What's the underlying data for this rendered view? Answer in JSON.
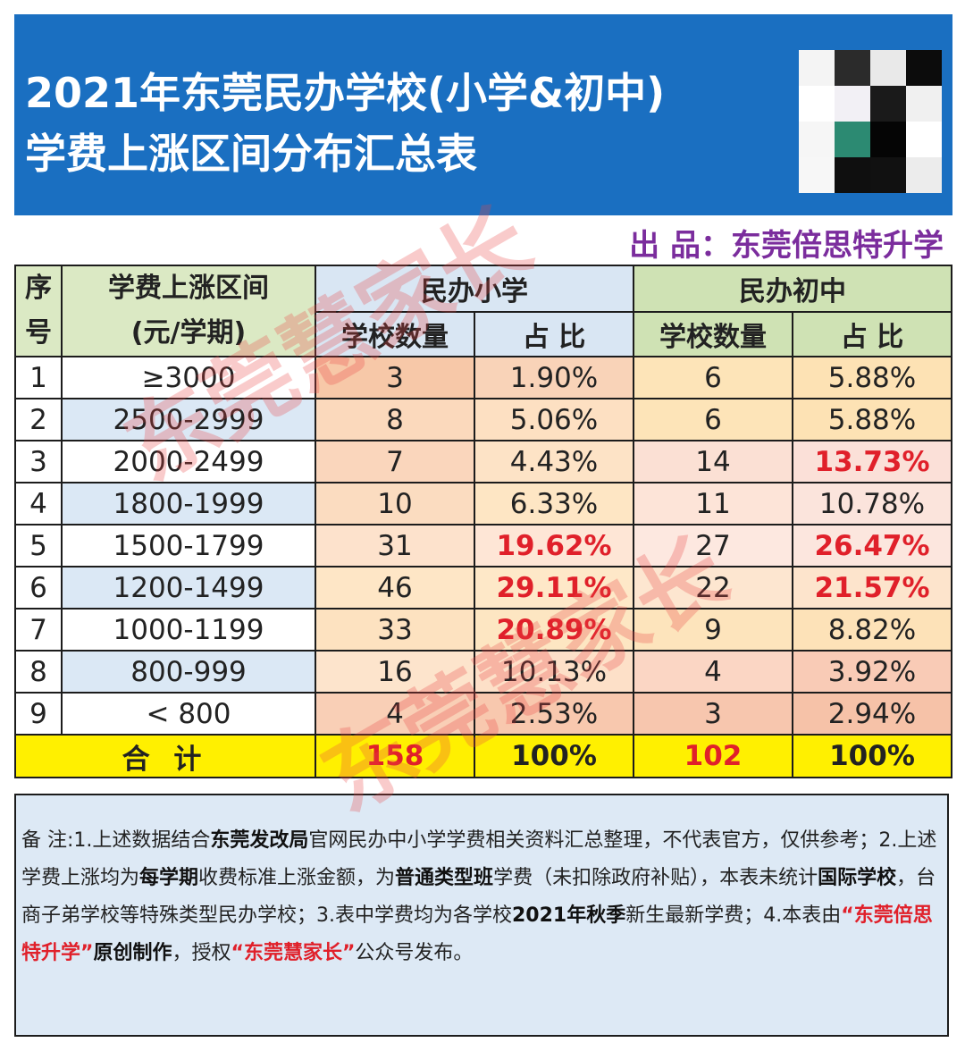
{
  "header": {
    "title_line1": "2021年东莞民办学校(小学&初中)",
    "title_line2": "学费上涨区间分布汇总表",
    "qr_code": "qr-code-image"
  },
  "producer": "出 品：东莞倍思特升学",
  "watermark": "东莞慧家长",
  "colors": {
    "header_bg": "#1a6fc1",
    "primary_header_bg": "#d9e6f3",
    "middle_header_bg": "#cfe2b4",
    "total_row_bg": "#fff000",
    "highlight_red": "#e0202a",
    "producer_purple": "#7b2d9d"
  },
  "table": {
    "col_index": "序号",
    "col_range": "学费上涨区间(元/学期)",
    "col_index_l1": "序",
    "col_index_l2": "号",
    "col_range_l1": "学费上涨区间",
    "col_range_l2": "(元/学期)",
    "group_primary": "民办小学",
    "group_middle": "民办初中",
    "sub_count": "学校数量",
    "sub_ratio": "占 比",
    "rows": [
      {
        "no": "1",
        "range": "≥3000",
        "p_count": "3",
        "p_ratio": "1.90%",
        "m_count": "6",
        "m_ratio": "5.88%"
      },
      {
        "no": "2",
        "range": "2500-2999",
        "p_count": "8",
        "p_ratio": "5.06%",
        "m_count": "6",
        "m_ratio": "5.88%"
      },
      {
        "no": "3",
        "range": "2000-2499",
        "p_count": "7",
        "p_ratio": "4.43%",
        "m_count": "14",
        "m_ratio": "13.73%"
      },
      {
        "no": "4",
        "range": "1800-1999",
        "p_count": "10",
        "p_ratio": "6.33%",
        "m_count": "11",
        "m_ratio": "10.78%"
      },
      {
        "no": "5",
        "range": "1500-1799",
        "p_count": "31",
        "p_ratio": "19.62%",
        "m_count": "27",
        "m_ratio": "26.47%"
      },
      {
        "no": "6",
        "range": "1200-1499",
        "p_count": "46",
        "p_ratio": "29.11%",
        "m_count": "22",
        "m_ratio": "21.57%"
      },
      {
        "no": "7",
        "range": "1000-1199",
        "p_count": "33",
        "p_ratio": "20.89%",
        "m_count": "9",
        "m_ratio": "8.82%"
      },
      {
        "no": "8",
        "range": "800-999",
        "p_count": "16",
        "p_ratio": "10.13%",
        "m_count": "4",
        "m_ratio": "3.92%"
      },
      {
        "no": "9",
        "range": "< 800",
        "p_count": "4",
        "p_ratio": "2.53%",
        "m_count": "3",
        "m_ratio": "2.94%"
      }
    ],
    "total": {
      "label": "合 计",
      "p_count": "158",
      "p_ratio": "100%",
      "m_count": "102",
      "m_ratio": "100%"
    }
  },
  "notes": {
    "s1": "备 注:1.上述数据结合",
    "b1": "东莞发改局",
    "s2": "官网民办中小学学费相关资料汇总整理，不代表官方，仅供参考；2.上述学费上涨均为",
    "b2": "每学期",
    "s3": "收费标准上涨金额，为",
    "b3": "普通类型班",
    "s4": "学费（未扣除政府补贴），本表未统计",
    "b4": "国际学校",
    "s5": "，台商子弟学校等特殊类型民办学校；3.表中学费均为各学校",
    "b5": "2021年秋季",
    "s6": "新生最新学费；4.本表由",
    "r1": "“东莞倍思特升学”",
    "b6": "原创制作",
    "s7": "，授权",
    "r2": "“东莞慧家长”",
    "s8": "公众号发布。"
  }
}
